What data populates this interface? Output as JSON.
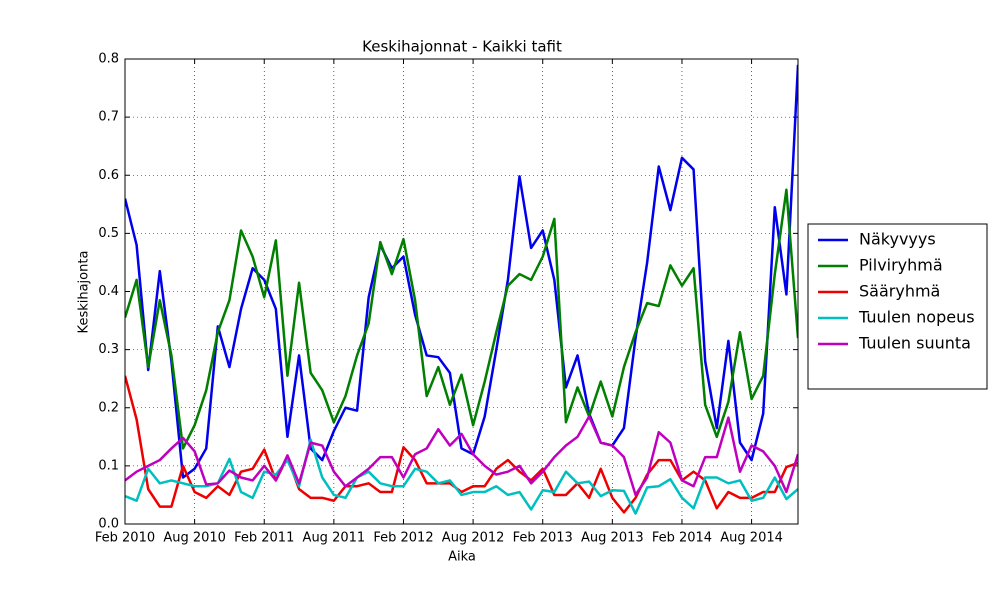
{
  "chart_data": {
    "type": "line",
    "title": "Keskihajonnat - Kaikki tafit",
    "xlabel": "Aika",
    "ylabel": "Keskihajonta",
    "x": [
      "2010-02",
      "2010-03",
      "2010-04",
      "2010-05",
      "2010-06",
      "2010-07",
      "2010-08",
      "2010-09",
      "2010-10",
      "2010-11",
      "2010-12",
      "2011-01",
      "2011-02",
      "2011-03",
      "2011-04",
      "2011-05",
      "2011-06",
      "2011-07",
      "2011-08",
      "2011-09",
      "2011-10",
      "2011-11",
      "2011-12",
      "2012-01",
      "2012-02",
      "2012-03",
      "2012-04",
      "2012-05",
      "2012-06",
      "2012-07",
      "2012-08",
      "2012-09",
      "2012-10",
      "2012-11",
      "2012-12",
      "2013-01",
      "2013-02",
      "2013-03",
      "2013-04",
      "2013-05",
      "2013-06",
      "2013-07",
      "2013-08",
      "2013-09",
      "2013-10",
      "2013-11",
      "2013-12",
      "2014-01",
      "2014-02",
      "2014-03",
      "2014-04",
      "2014-05",
      "2014-06",
      "2014-07",
      "2014-08",
      "2014-09",
      "2014-10",
      "2014-11",
      "2014-12"
    ],
    "xlim": [
      "2010-02",
      "2014-12"
    ],
    "xticks": [
      {
        "value": "2010-02",
        "label": "Feb 2010"
      },
      {
        "value": "2010-08",
        "label": "Aug 2010"
      },
      {
        "value": "2011-02",
        "label": "Feb 2011"
      },
      {
        "value": "2011-08",
        "label": "Aug 2011"
      },
      {
        "value": "2012-02",
        "label": "Feb 2012"
      },
      {
        "value": "2012-08",
        "label": "Aug 2012"
      },
      {
        "value": "2013-02",
        "label": "Feb 2013"
      },
      {
        "value": "2013-08",
        "label": "Aug 2013"
      },
      {
        "value": "2014-02",
        "label": "Feb 2014"
      },
      {
        "value": "2014-08",
        "label": "Aug 2014"
      }
    ],
    "ylim": [
      0,
      0.8
    ],
    "yticks": [
      {
        "value": 0,
        "label": "0.0"
      },
      0.1,
      0.2,
      0.3,
      0.4,
      0.5,
      0.6,
      0.7,
      0.8
    ],
    "grid": true,
    "legend": "outside right",
    "series": [
      {
        "name": "Näkyvyys",
        "color": "#0000ee",
        "values": [
          0.56,
          0.48,
          0.265,
          0.435,
          0.28,
          0.08,
          0.095,
          0.13,
          0.34,
          0.27,
          0.37,
          0.44,
          0.42,
          0.37,
          0.15,
          0.29,
          0.13,
          0.11,
          0.16,
          0.2,
          0.195,
          0.39,
          0.48,
          0.44,
          0.46,
          0.36,
          0.29,
          0.287,
          0.26,
          0.13,
          0.12,
          0.185,
          0.3,
          0.42,
          0.598,
          0.475,
          0.505,
          0.42,
          0.235,
          0.29,
          0.19,
          0.14,
          0.135,
          0.165,
          0.32,
          0.45,
          0.615,
          0.54,
          0.63,
          0.61,
          0.28,
          0.165,
          0.315,
          0.14,
          0.11,
          0.19,
          0.545,
          0.395,
          0.79
        ]
      },
      {
        "name": "Pilviryhmä",
        "color": "#007f00",
        "values": [
          0.355,
          0.42,
          0.27,
          0.385,
          0.29,
          0.13,
          0.17,
          0.23,
          0.33,
          0.385,
          0.505,
          0.46,
          0.39,
          0.488,
          0.255,
          0.415,
          0.26,
          0.23,
          0.175,
          0.22,
          0.29,
          0.345,
          0.485,
          0.43,
          0.49,
          0.385,
          0.22,
          0.27,
          0.205,
          0.257,
          0.17,
          0.245,
          0.33,
          0.41,
          0.43,
          0.42,
          0.46,
          0.525,
          0.175,
          0.235,
          0.185,
          0.245,
          0.185,
          0.27,
          0.33,
          0.38,
          0.375,
          0.445,
          0.41,
          0.44,
          0.205,
          0.15,
          0.21,
          0.33,
          0.215,
          0.255,
          0.43,
          0.575,
          0.32
        ]
      },
      {
        "name": "Sääryhmä",
        "color": "#ee0000",
        "values": [
          0.255,
          0.18,
          0.06,
          0.03,
          0.03,
          0.1,
          0.055,
          0.045,
          0.065,
          0.05,
          0.09,
          0.095,
          0.128,
          0.075,
          0.115,
          0.06,
          0.045,
          0.045,
          0.04,
          0.065,
          0.065,
          0.07,
          0.055,
          0.055,
          0.132,
          0.11,
          0.07,
          0.07,
          0.07,
          0.055,
          0.065,
          0.065,
          0.095,
          0.11,
          0.09,
          0.075,
          0.095,
          0.05,
          0.05,
          0.07,
          0.045,
          0.095,
          0.045,
          0.02,
          0.045,
          0.085,
          0.11,
          0.11,
          0.075,
          0.09,
          0.075,
          0.027,
          0.055,
          0.045,
          0.045,
          0.055,
          0.055,
          0.098,
          0.105
        ]
      },
      {
        "name": "Tuulen nopeus",
        "color": "#00bfbf",
        "values": [
          0.048,
          0.04,
          0.095,
          0.07,
          0.075,
          0.07,
          0.065,
          0.065,
          0.07,
          0.112,
          0.055,
          0.045,
          0.09,
          0.085,
          0.11,
          0.065,
          0.145,
          0.08,
          0.05,
          0.045,
          0.08,
          0.09,
          0.07,
          0.065,
          0.065,
          0.095,
          0.09,
          0.07,
          0.075,
          0.05,
          0.055,
          0.055,
          0.065,
          0.05,
          0.055,
          0.025,
          0.058,
          0.055,
          0.09,
          0.07,
          0.073,
          0.048,
          0.058,
          0.057,
          0.018,
          0.063,
          0.065,
          0.077,
          0.045,
          0.027,
          0.08,
          0.08,
          0.07,
          0.075,
          0.04,
          0.045,
          0.08,
          0.043,
          0.06
        ]
      },
      {
        "name": "Tuulen suunta",
        "color": "#bf00bf",
        "values": [
          0.075,
          0.09,
          0.1,
          0.11,
          0.13,
          0.148,
          0.125,
          0.068,
          0.07,
          0.092,
          0.08,
          0.075,
          0.1,
          0.075,
          0.118,
          0.07,
          0.14,
          0.135,
          0.09,
          0.065,
          0.08,
          0.095,
          0.115,
          0.115,
          0.08,
          0.12,
          0.13,
          0.163,
          0.135,
          0.155,
          0.12,
          0.1,
          0.085,
          0.09,
          0.1,
          0.07,
          0.09,
          0.115,
          0.135,
          0.15,
          0.185,
          0.14,
          0.135,
          0.115,
          0.05,
          0.08,
          0.158,
          0.14,
          0.075,
          0.065,
          0.115,
          0.115,
          0.183,
          0.09,
          0.135,
          0.125,
          0.1,
          0.055,
          0.12
        ]
      }
    ]
  }
}
